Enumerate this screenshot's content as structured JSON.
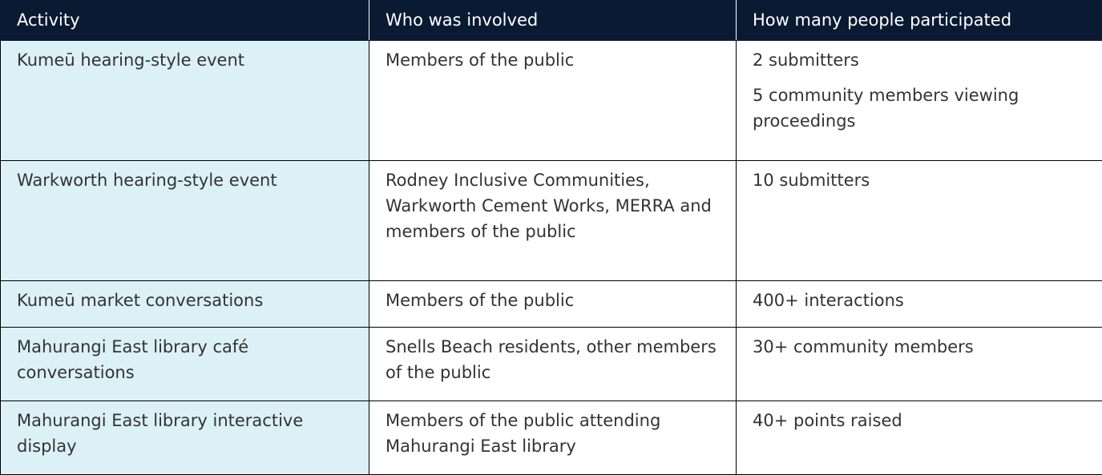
{
  "table": {
    "header": [
      "Activity",
      "Who was involved",
      "How many people participated"
    ],
    "rows": [
      [
        "Kumeū hearing-style event",
        "Members of the public",
        [
          "2 submitters",
          "5 community members viewing proceedings"
        ]
      ],
      [
        "Warkworth hearing-style event",
        "Rodney Inclusive Communities, Warkworth Cement Works, MERRA and members of the public",
        [
          "10 submitters"
        ]
      ],
      [
        "Kumeū market conversations",
        "Members of the public",
        [
          "400+ interactions"
        ]
      ],
      [
        "Mahurangi East library café conversations",
        "Snells Beach residents, other members of the public",
        [
          "30+ community members"
        ]
      ],
      [
        "Mahurangi East library interactive display",
        "Members of the public attending Mahurangi East library",
        [
          "40+ points raised"
        ]
      ]
    ]
  }
}
